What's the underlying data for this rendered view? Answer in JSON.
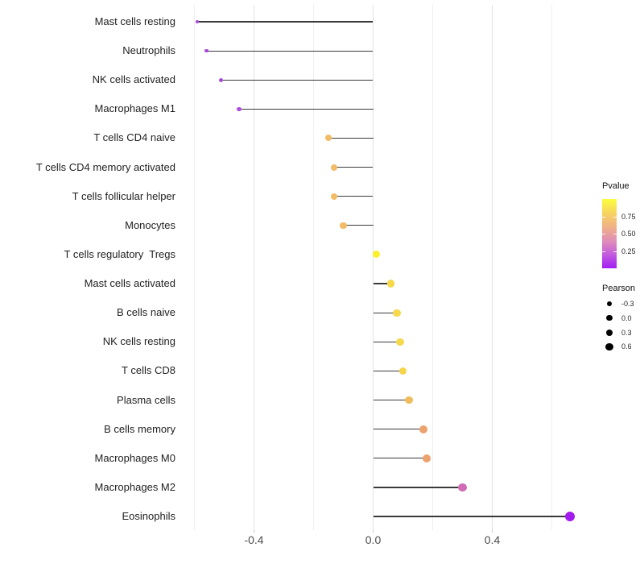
{
  "figure": {
    "background": "#ffffff"
  },
  "chart_data": {
    "type": "scatter",
    "style": "lollipop",
    "orientation": "horizontal",
    "title": "",
    "xlabel": "",
    "ylabel": "",
    "grid": "vertical-only",
    "legend_position": "right",
    "baseline": 0.0,
    "xlim": [
      -0.66,
      0.73
    ],
    "x_gridlines": [
      -0.6,
      -0.4,
      -0.2,
      0.0,
      0.2,
      0.4,
      0.6
    ],
    "x_ticks": {
      "values": [
        -0.4,
        0.0,
        0.4
      ],
      "labels": [
        "-0.4",
        "0.0",
        "0.4"
      ]
    },
    "categories": [
      "Mast cells resting",
      "Neutrophils",
      "NK cells activated",
      "Macrophages M1",
      "T cells CD4 naive",
      "T cells CD4 memory activated",
      "T cells follicular helper",
      "Monocytes",
      "T cells regulatory  Tregs",
      "Mast cells activated",
      "B cells naive",
      "NK cells resting",
      "T cells CD8",
      "Plasma cells",
      "B cells memory",
      "Macrophages M0",
      "Macrophages M2",
      "Eosinophils"
    ],
    "points": [
      {
        "category": "Mast cells resting",
        "pearson": -0.59,
        "color": "#a648d9"
      },
      {
        "category": "Neutrophils",
        "pearson": -0.56,
        "color": "#a648d9"
      },
      {
        "category": "NK cells activated",
        "pearson": -0.51,
        "color": "#a74bdc"
      },
      {
        "category": "Macrophages M1",
        "pearson": -0.45,
        "color": "#ab4fde"
      },
      {
        "category": "T cells CD4 naive",
        "pearson": -0.15,
        "color": "#f2bb66"
      },
      {
        "category": "T cells CD4 memory activated",
        "pearson": -0.13,
        "color": "#f2bb66"
      },
      {
        "category": "T cells follicular helper",
        "pearson": -0.13,
        "color": "#f2bb66"
      },
      {
        "category": "Monocytes",
        "pearson": -0.1,
        "color": "#f2bb66"
      },
      {
        "category": "T cells regulatory  Tregs",
        "pearson": 0.01,
        "color": "#fbf02c"
      },
      {
        "category": "Mast cells activated",
        "pearson": 0.06,
        "color": "#f6d84b"
      },
      {
        "category": "B cells naive",
        "pearson": 0.08,
        "color": "#f6d84b"
      },
      {
        "category": "NK cells resting",
        "pearson": 0.09,
        "color": "#f6d84b"
      },
      {
        "category": "T cells CD8",
        "pearson": 0.1,
        "color": "#f5d449"
      },
      {
        "category": "Plasma cells",
        "pearson": 0.12,
        "color": "#f0bc5b"
      },
      {
        "category": "B cells memory",
        "pearson": 0.17,
        "color": "#eca26d"
      },
      {
        "category": "Macrophages M0",
        "pearson": 0.18,
        "color": "#eca26d"
      },
      {
        "category": "Macrophages M2",
        "pearson": 0.3,
        "color": "#d06cb6"
      },
      {
        "category": "Eosinophils",
        "pearson": 0.66,
        "color": "#a21aee"
      }
    ],
    "legends": {
      "pvalue": {
        "title": "Pvalue",
        "type": "colorbar",
        "range": [
          0,
          1
        ],
        "tick_values": [
          0.75,
          0.5,
          0.25
        ],
        "tick_labels": [
          "0.75",
          "0.50",
          "0.25"
        ],
        "gradient_stops": [
          "#fcfe40",
          "#f6d45f",
          "#efae8b",
          "#de8bbb",
          "#c159df",
          "#a21ef4"
        ]
      },
      "pearson": {
        "title": "Pearson",
        "type": "size",
        "dot_color": "#000000",
        "items": [
          {
            "label": "-0.3",
            "value": -0.3
          },
          {
            "label": "0.0",
            "value": 0.0
          },
          {
            "label": "0.3",
            "value": 0.3
          },
          {
            "label": "0.6",
            "value": 0.6
          }
        ]
      }
    },
    "stem_color": "#3a3a3a"
  }
}
